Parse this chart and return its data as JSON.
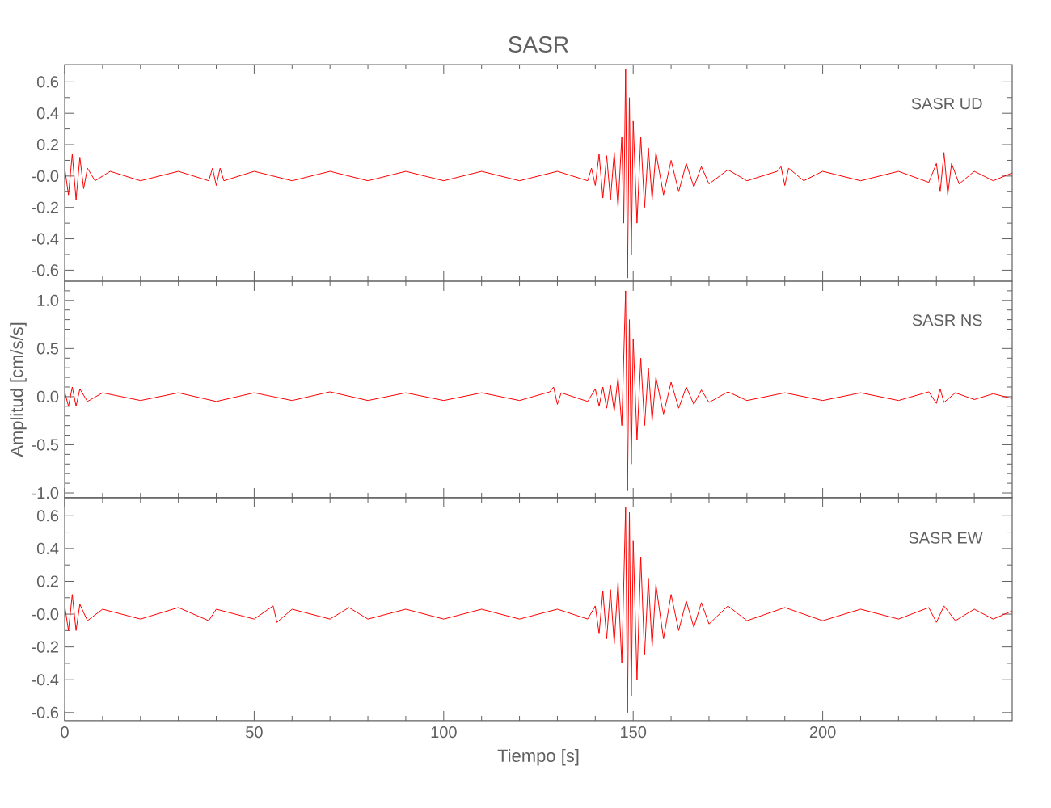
{
  "chart_data": [
    {
      "type": "line",
      "title": "SASR",
      "annotations": [
        "SASR UD"
      ],
      "tick_labels": "y",
      "legend": false,
      "grid": false,
      "marker": "none",
      "xlim": [
        0,
        250
      ],
      "xticks": [
        0,
        {
          "value": 10,
          "label": null
        },
        {
          "value": 20,
          "label": null
        },
        {
          "value": 30,
          "label": null
        },
        {
          "value": 40,
          "label": null
        },
        50,
        {
          "value": 60,
          "label": null
        },
        {
          "value": 70,
          "label": null
        },
        {
          "value": 80,
          "label": null
        },
        {
          "value": 90,
          "label": null
        },
        100,
        {
          "value": 110,
          "label": null
        },
        {
          "value": 120,
          "label": null
        },
        {
          "value": 130,
          "label": null
        },
        {
          "value": 140,
          "label": null
        },
        150,
        {
          "value": 160,
          "label": null
        },
        {
          "value": 170,
          "label": null
        },
        {
          "value": 180,
          "label": null
        },
        {
          "value": 190,
          "label": null
        },
        200,
        {
          "value": 210,
          "label": null
        },
        {
          "value": 220,
          "label": null
        },
        {
          "value": 230,
          "label": null
        },
        {
          "value": 240,
          "label": null
        }
      ],
      "ylim": [
        -0.67,
        0.71
      ],
      "yticks": [
        {
          "value": -0.6,
          "label": "-0.6"
        },
        {
          "value": -0.5,
          "label": null
        },
        {
          "value": -0.4,
          "label": "-0.4"
        },
        {
          "value": -0.3,
          "label": null
        },
        {
          "value": -0.2,
          "label": "-0.2"
        },
        {
          "value": -0.1,
          "label": null
        },
        {
          "value": 0,
          "label": "-0.0"
        },
        {
          "value": 0.1,
          "label": null
        },
        {
          "value": 0.2,
          "label": "0.2"
        },
        {
          "value": 0.3,
          "label": null
        },
        {
          "value": 0.4,
          "label": "0.4"
        },
        {
          "value": 0.5,
          "label": null
        },
        {
          "value": 0.6,
          "label": "0.6"
        }
      ],
      "series": [
        {
          "color": "#ff0000",
          "x": [
            0,
            1,
            2,
            3,
            4,
            5,
            6,
            8,
            12,
            20,
            30,
            38,
            39,
            40,
            41,
            42,
            50,
            60,
            70,
            80,
            90,
            100,
            110,
            120,
            130,
            138,
            139,
            140,
            141,
            142,
            143,
            144,
            145,
            146,
            147,
            147.5,
            148,
            148.5,
            149,
            149.5,
            150,
            151,
            152,
            153,
            154,
            155,
            156,
            158,
            160,
            162,
            164,
            166,
            168,
            170,
            175,
            180,
            188,
            189,
            190,
            191,
            195,
            200,
            210,
            220,
            228,
            230,
            231,
            232,
            233,
            234,
            236,
            240,
            245,
            250
          ],
          "values": [
            0.05,
            -0.12,
            0.14,
            -0.15,
            0.12,
            -0.08,
            0.05,
            -0.03,
            0.03,
            -0.03,
            0.03,
            -0.03,
            0.05,
            -0.06,
            0.05,
            -0.03,
            0.03,
            -0.03,
            0.03,
            -0.03,
            0.03,
            -0.03,
            0.03,
            -0.03,
            0.03,
            -0.03,
            0.05,
            -0.06,
            0.14,
            -0.14,
            0.13,
            -0.15,
            0.15,
            -0.2,
            0.25,
            -0.3,
            0.68,
            -0.65,
            0.5,
            -0.5,
            0.35,
            -0.3,
            0.25,
            -0.2,
            0.18,
            -0.15,
            0.15,
            -0.12,
            0.1,
            -0.1,
            0.08,
            -0.07,
            0.06,
            -0.05,
            0.04,
            -0.03,
            0.03,
            0.06,
            -0.06,
            0.05,
            -0.03,
            0.03,
            -0.03,
            0.03,
            -0.04,
            0.08,
            -0.1,
            0.15,
            -0.12,
            0.08,
            -0.05,
            0.03,
            -0.03,
            0.02
          ]
        }
      ]
    },
    {
      "type": "line",
      "ylabel": "Amplitud [cm/s/s]",
      "annotations": [
        "SASR NS"
      ],
      "tick_labels": "y",
      "legend": false,
      "grid": false,
      "marker": "none",
      "xlim": [
        0,
        250
      ],
      "xticks": [
        0,
        {
          "value": 10,
          "label": null
        },
        {
          "value": 20,
          "label": null
        },
        {
          "value": 30,
          "label": null
        },
        {
          "value": 40,
          "label": null
        },
        50,
        {
          "value": 60,
          "label": null
        },
        {
          "value": 70,
          "label": null
        },
        {
          "value": 80,
          "label": null
        },
        {
          "value": 90,
          "label": null
        },
        100,
        {
          "value": 110,
          "label": null
        },
        {
          "value": 120,
          "label": null
        },
        {
          "value": 130,
          "label": null
        },
        {
          "value": 140,
          "label": null
        },
        150,
        {
          "value": 160,
          "label": null
        },
        {
          "value": 170,
          "label": null
        },
        {
          "value": 180,
          "label": null
        },
        {
          "value": 190,
          "label": null
        },
        200,
        {
          "value": 210,
          "label": null
        },
        {
          "value": 220,
          "label": null
        },
        {
          "value": 230,
          "label": null
        },
        {
          "value": 240,
          "label": null
        }
      ],
      "ylim": [
        -1.05,
        1.2
      ],
      "yticks": [
        {
          "value": -1.0,
          "label": "-1.0"
        },
        {
          "value": -0.9,
          "label": null
        },
        {
          "value": -0.8,
          "label": null
        },
        {
          "value": -0.7,
          "label": null
        },
        {
          "value": -0.6,
          "label": null
        },
        {
          "value": -0.5,
          "label": "-0.5"
        },
        {
          "value": -0.4,
          "label": null
        },
        {
          "value": -0.3,
          "label": null
        },
        {
          "value": -0.2,
          "label": null
        },
        {
          "value": -0.1,
          "label": null
        },
        {
          "value": 0,
          "label": "0.0"
        },
        {
          "value": 0.1,
          "label": null
        },
        {
          "value": 0.2,
          "label": null
        },
        {
          "value": 0.3,
          "label": null
        },
        {
          "value": 0.4,
          "label": null
        },
        {
          "value": 0.5,
          "label": "0.5"
        },
        {
          "value": 0.6,
          "label": null
        },
        {
          "value": 0.7,
          "label": null
        },
        {
          "value": 0.8,
          "label": null
        },
        {
          "value": 0.9,
          "label": null
        },
        {
          "value": 1.0,
          "label": "1.0"
        },
        {
          "value": 1.1,
          "label": null
        }
      ],
      "series": [
        {
          "color": "#ff0000",
          "x": [
            0,
            1,
            2,
            3,
            4,
            6,
            10,
            20,
            30,
            40,
            50,
            60,
            70,
            80,
            90,
            100,
            110,
            120,
            128,
            129,
            130,
            131,
            138,
            140,
            141,
            142,
            143,
            144,
            145,
            146,
            147,
            148,
            148.5,
            149,
            149.5,
            150,
            151,
            152,
            153,
            154,
            155,
            156,
            158,
            160,
            162,
            164,
            166,
            168,
            170,
            175,
            180,
            190,
            200,
            210,
            220,
            228,
            230,
            231,
            232,
            235,
            240,
            245,
            250
          ],
          "values": [
            0.05,
            -0.1,
            0.1,
            -0.1,
            0.08,
            -0.05,
            0.04,
            -0.04,
            0.04,
            -0.05,
            0.04,
            -0.04,
            0.05,
            -0.04,
            0.04,
            -0.04,
            0.04,
            -0.04,
            0.05,
            0.1,
            -0.08,
            0.04,
            -0.05,
            0.08,
            -0.1,
            0.1,
            -0.12,
            0.12,
            -0.15,
            0.2,
            -0.3,
            1.1,
            -0.98,
            0.8,
            -0.7,
            0.6,
            -0.45,
            0.4,
            -0.3,
            0.3,
            -0.25,
            0.2,
            -0.18,
            0.15,
            -0.12,
            0.1,
            -0.08,
            0.07,
            -0.06,
            0.05,
            -0.04,
            0.04,
            -0.04,
            0.04,
            -0.04,
            0.05,
            -0.07,
            0.08,
            -0.06,
            0.04,
            -0.03,
            0.03,
            -0.02
          ]
        }
      ]
    },
    {
      "type": "line",
      "xlabel": "Tiempo [s]",
      "annotations": [
        "SASR EW"
      ],
      "legend": false,
      "grid": false,
      "marker": "none",
      "xlim": [
        0,
        250
      ],
      "xticks": [
        0,
        {
          "value": 10,
          "label": null
        },
        {
          "value": 20,
          "label": null
        },
        {
          "value": 30,
          "label": null
        },
        {
          "value": 40,
          "label": null
        },
        50,
        {
          "value": 60,
          "label": null
        },
        {
          "value": 70,
          "label": null
        },
        {
          "value": 80,
          "label": null
        },
        {
          "value": 90,
          "label": null
        },
        100,
        {
          "value": 110,
          "label": null
        },
        {
          "value": 120,
          "label": null
        },
        {
          "value": 130,
          "label": null
        },
        {
          "value": 140,
          "label": null
        },
        150,
        {
          "value": 160,
          "label": null
        },
        {
          "value": 170,
          "label": null
        },
        {
          "value": 180,
          "label": null
        },
        {
          "value": 190,
          "label": null
        },
        200,
        {
          "value": 210,
          "label": null
        },
        {
          "value": 220,
          "label": null
        },
        {
          "value": 230,
          "label": null
        },
        {
          "value": 240,
          "label": null
        }
      ],
      "ylim": [
        -0.65,
        0.71
      ],
      "yticks": [
        {
          "value": -0.6,
          "label": "-0.6"
        },
        {
          "value": -0.5,
          "label": null
        },
        {
          "value": -0.4,
          "label": "-0.4"
        },
        {
          "value": -0.3,
          "label": null
        },
        {
          "value": -0.2,
          "label": "-0.2"
        },
        {
          "value": -0.1,
          "label": null
        },
        {
          "value": 0,
          "label": "-0.0"
        },
        {
          "value": 0.1,
          "label": null
        },
        {
          "value": 0.2,
          "label": "0.2"
        },
        {
          "value": 0.3,
          "label": null
        },
        {
          "value": 0.4,
          "label": "0.4"
        },
        {
          "value": 0.5,
          "label": null
        },
        {
          "value": 0.6,
          "label": "0.6"
        }
      ],
      "series": [
        {
          "color": "#ff0000",
          "x": [
            0,
            1,
            2,
            3,
            4,
            6,
            10,
            20,
            30,
            38,
            40,
            50,
            55,
            56,
            60,
            70,
            75,
            80,
            90,
            100,
            110,
            120,
            130,
            138,
            140,
            141,
            142,
            143,
            144,
            145,
            146,
            147,
            148,
            148.5,
            149,
            149.5,
            150,
            151,
            152,
            153,
            154,
            155,
            156,
            158,
            160,
            162,
            164,
            166,
            168,
            170,
            175,
            180,
            190,
            200,
            210,
            220,
            228,
            230,
            232,
            235,
            240,
            245,
            250
          ],
          "values": [
            0.05,
            -0.1,
            0.12,
            -0.1,
            0.06,
            -0.04,
            0.03,
            -0.03,
            0.04,
            -0.04,
            0.03,
            -0.03,
            0.05,
            -0.05,
            0.03,
            -0.03,
            0.04,
            -0.03,
            0.03,
            -0.03,
            0.03,
            -0.03,
            0.03,
            -0.03,
            0.05,
            -0.12,
            0.14,
            -0.15,
            0.15,
            -0.18,
            0.2,
            -0.3,
            0.65,
            -0.6,
            0.62,
            -0.5,
            0.45,
            -0.4,
            0.35,
            -0.25,
            0.22,
            -0.2,
            0.18,
            -0.15,
            0.12,
            -0.1,
            0.08,
            -0.08,
            0.07,
            -0.06,
            0.05,
            -0.04,
            0.04,
            -0.04,
            0.03,
            -0.03,
            0.04,
            -0.05,
            0.05,
            -0.04,
            0.03,
            -0.03,
            0.02
          ]
        }
      ]
    }
  ]
}
